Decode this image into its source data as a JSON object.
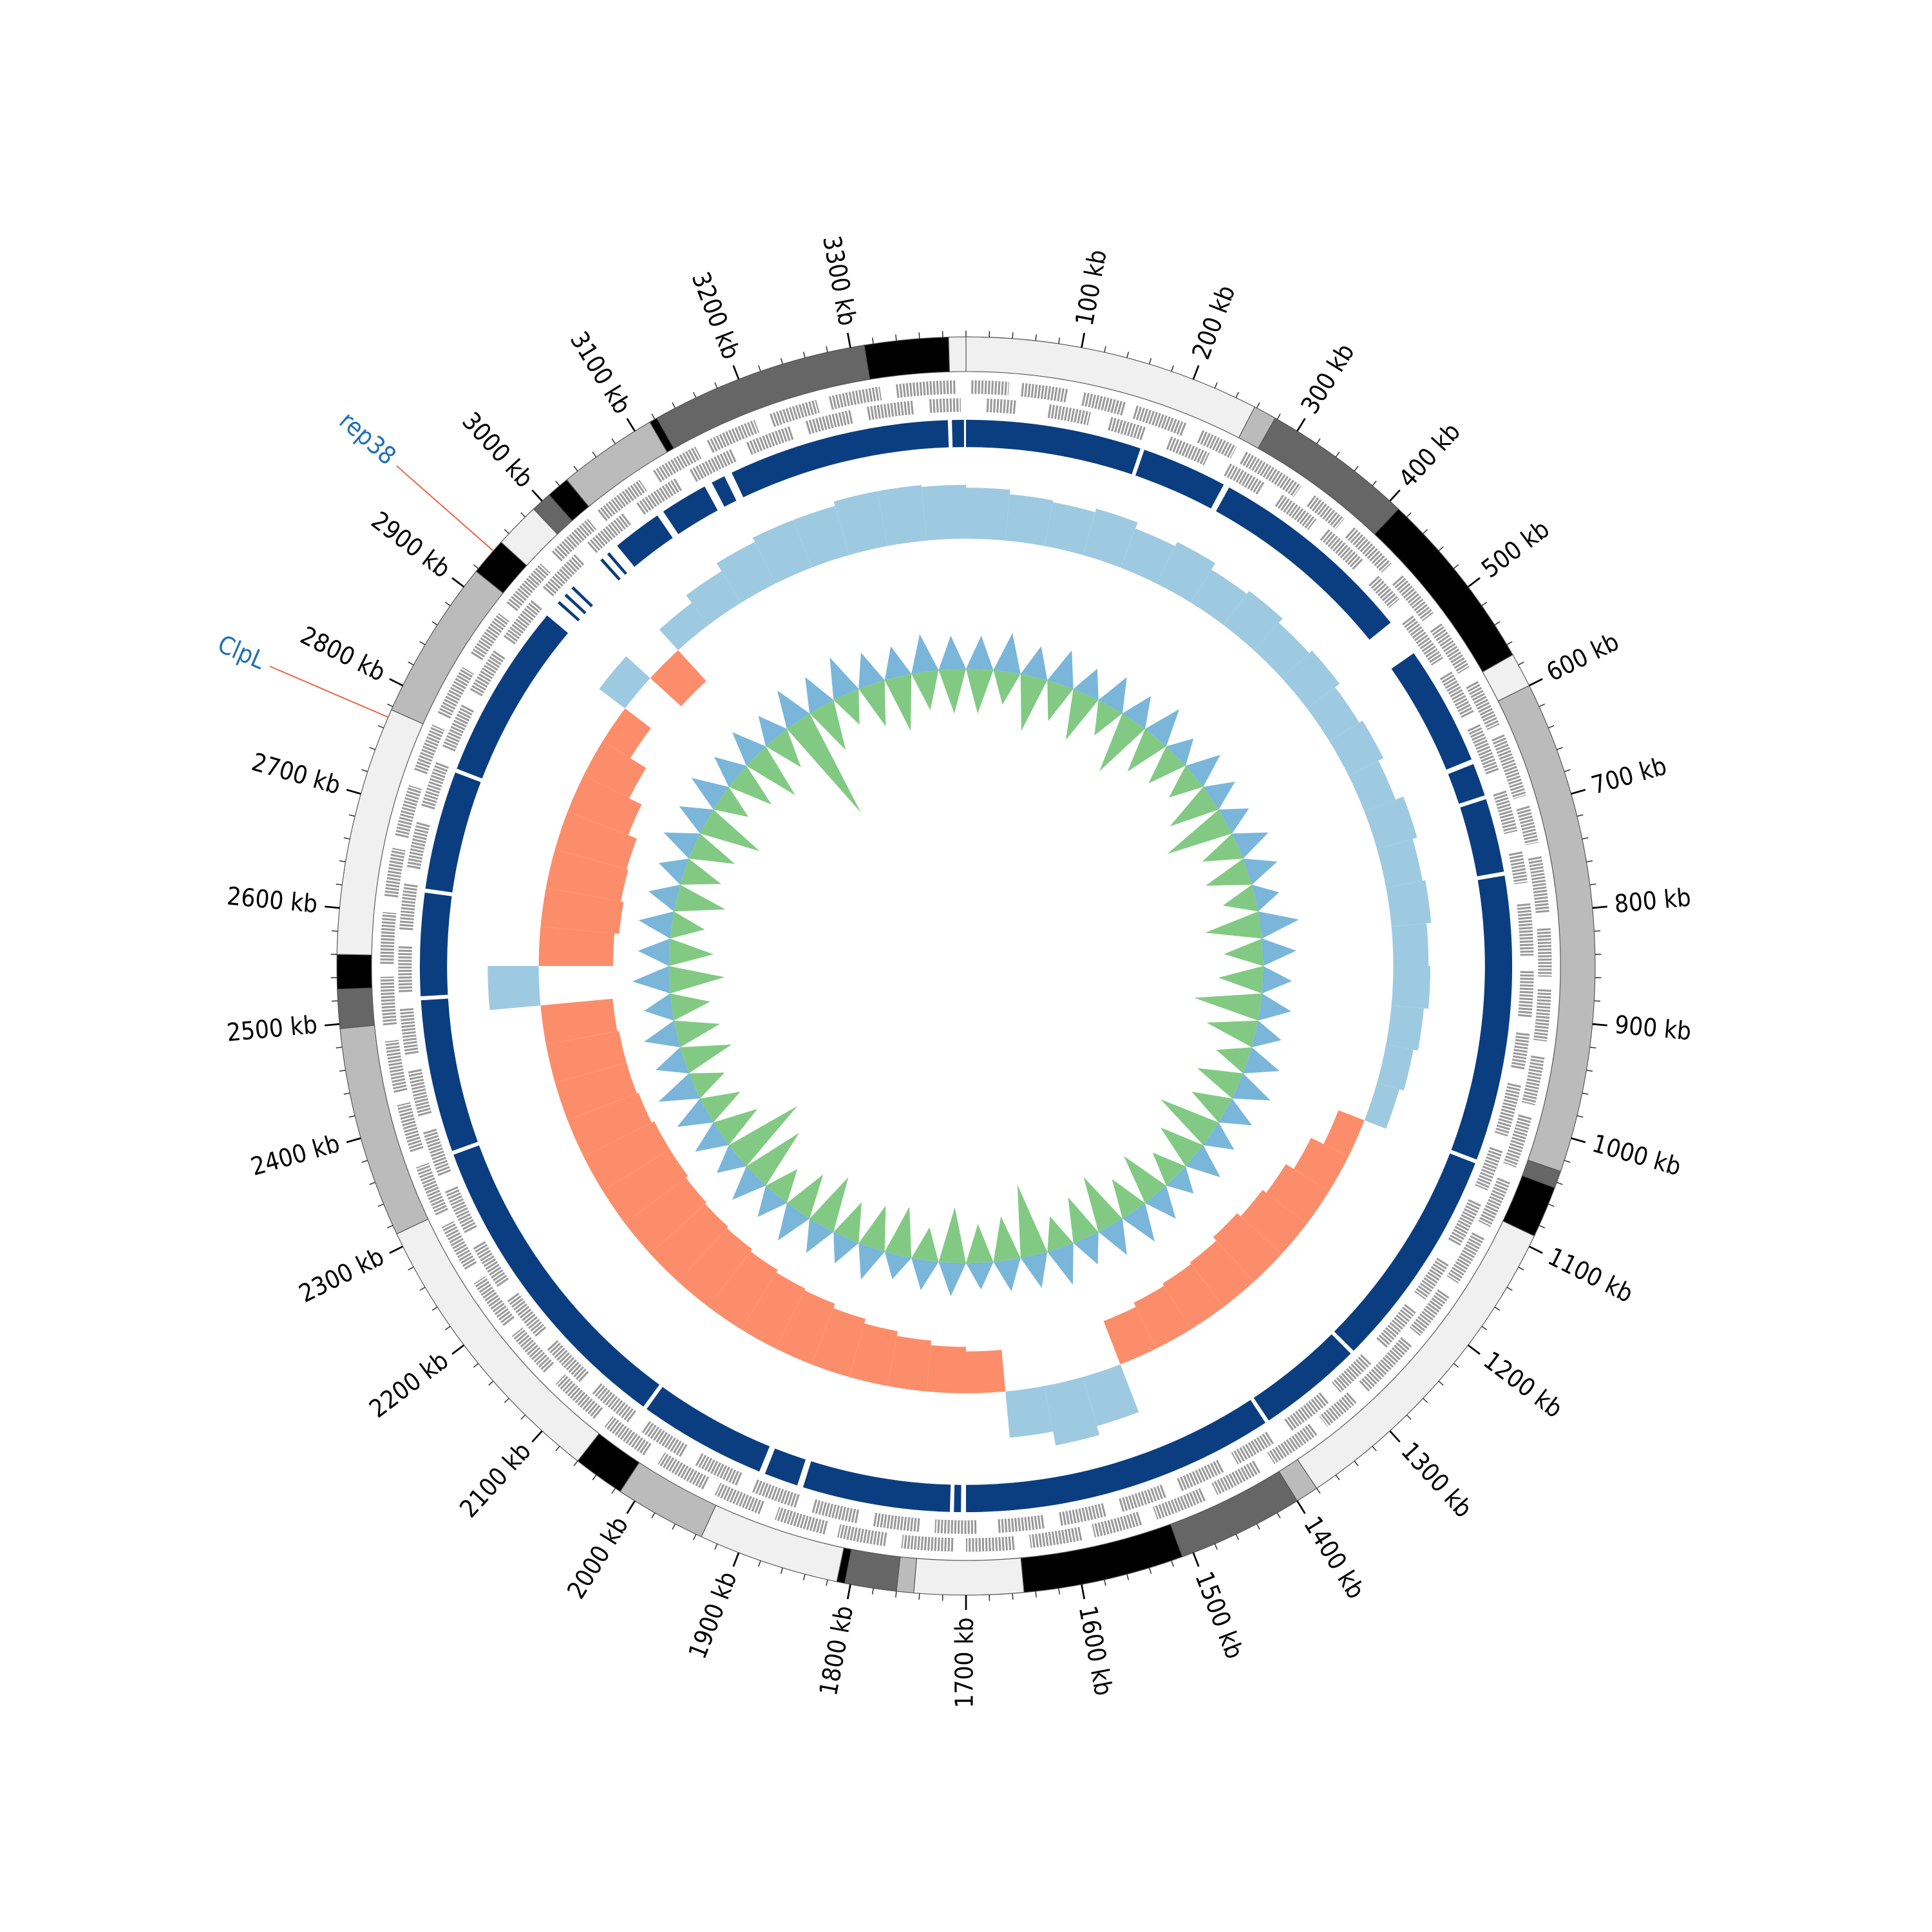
{
  "chart_data": {
    "type": "circos",
    "xlim": [
      0,
      3400
    ],
    "xticks": [
      {
        "value": 100,
        "label": "100 kb"
      },
      {
        "value": 200,
        "label": "200 kb"
      },
      {
        "value": 300,
        "label": "300 kb"
      },
      {
        "value": 400,
        "label": "400 kb"
      },
      {
        "value": 500,
        "label": "500 kb"
      },
      {
        "value": 600,
        "label": "600 kb"
      },
      {
        "value": 700,
        "label": "700 kb"
      },
      {
        "value": 800,
        "label": "800 kb"
      },
      {
        "value": 900,
        "label": "900 kb"
      },
      {
        "value": 1000,
        "label": "1000 kb"
      },
      {
        "value": 1100,
        "label": "1100 kb"
      },
      {
        "value": 1200,
        "label": "1200 kb"
      },
      {
        "value": 1300,
        "label": "1300 kb"
      },
      {
        "value": 1400,
        "label": "1400 kb"
      },
      {
        "value": 1500,
        "label": "1500 kb"
      },
      {
        "value": 1600,
        "label": "1600 kb"
      },
      {
        "value": 1700,
        "label": "1700 kb"
      },
      {
        "value": 1800,
        "label": "1800 kb"
      },
      {
        "value": 1900,
        "label": "1900 kb"
      },
      {
        "value": 2000,
        "label": "2000 kb"
      },
      {
        "value": 2100,
        "label": "2100 kb"
      },
      {
        "value": 2200,
        "label": "2200 kb"
      },
      {
        "value": 2300,
        "label": "2300 kb"
      },
      {
        "value": 2400,
        "label": "2400 kb"
      },
      {
        "value": 2500,
        "label": "2500 kb"
      },
      {
        "value": 2600,
        "label": "2600 kb"
      },
      {
        "value": 2700,
        "label": "2700 kb"
      },
      {
        "value": 2800,
        "label": "2800 kb"
      },
      {
        "value": 2900,
        "label": "2900 kb"
      },
      {
        "value": 3000,
        "label": "3000 kb"
      },
      {
        "value": 3100,
        "label": "3100 kb"
      },
      {
        "value": 3200,
        "label": "3200 kb"
      },
      {
        "value": 3300,
        "label": "3300 kb"
      }
    ],
    "minor_tick_step": 20,
    "bands": [
      {
        "start": 0,
        "end": 258,
        "color": "#f0f0f0"
      },
      {
        "start": 258,
        "end": 278,
        "color": "#bbbbbb"
      },
      {
        "start": 278,
        "end": 410,
        "color": "#666666"
      },
      {
        "start": 410,
        "end": 570,
        "color": "#000000"
      },
      {
        "start": 570,
        "end": 600,
        "color": "#f0f0f0"
      },
      {
        "start": 600,
        "end": 1030,
        "color": "#bbbbbb"
      },
      {
        "start": 1030,
        "end": 1045,
        "color": "#666666"
      },
      {
        "start": 1045,
        "end": 1090,
        "color": "#000000"
      },
      {
        "start": 1090,
        "end": 1380,
        "color": "#f0f0f0"
      },
      {
        "start": 1380,
        "end": 1400,
        "color": "#bbbbbb"
      },
      {
        "start": 1400,
        "end": 1510,
        "color": "#666666"
      },
      {
        "start": 1510,
        "end": 1650,
        "color": "#000000"
      },
      {
        "start": 1650,
        "end": 1745,
        "color": "#f0f0f0"
      },
      {
        "start": 1745,
        "end": 1760,
        "color": "#bbbbbb"
      },
      {
        "start": 1760,
        "end": 1805,
        "color": "#666666"
      },
      {
        "start": 1805,
        "end": 1812,
        "color": "#000000"
      },
      {
        "start": 1812,
        "end": 1935,
        "color": "#f0f0f0"
      },
      {
        "start": 1935,
        "end": 2015,
        "color": "#bbbbbb"
      },
      {
        "start": 2015,
        "end": 2060,
        "color": "#000000"
      },
      {
        "start": 2060,
        "end": 2312,
        "color": "#f0f0f0"
      },
      {
        "start": 2312,
        "end": 2496,
        "color": "#bbbbbb"
      },
      {
        "start": 2496,
        "end": 2530,
        "color": "#666666"
      },
      {
        "start": 2530,
        "end": 2560,
        "color": "#000000"
      },
      {
        "start": 2560,
        "end": 2777,
        "color": "#f0f0f0"
      },
      {
        "start": 2777,
        "end": 2917,
        "color": "#bbbbbb"
      },
      {
        "start": 2917,
        "end": 2950,
        "color": "#000000"
      },
      {
        "start": 2950,
        "end": 2990,
        "color": "#f0f0f0"
      },
      {
        "start": 2990,
        "end": 3008,
        "color": "#666666"
      },
      {
        "start": 3008,
        "end": 3028,
        "color": "#000000"
      },
      {
        "start": 3028,
        "end": 3115,
        "color": "#bbbbbb"
      },
      {
        "start": 3115,
        "end": 3122,
        "color": "#000000"
      },
      {
        "start": 3122,
        "end": 3312,
        "color": "#666666"
      },
      {
        "start": 3312,
        "end": 3385,
        "color": "#000000"
      },
      {
        "start": 3385,
        "end": 3400,
        "color": "#f0f0f0"
      }
    ],
    "gene_color": "#999999",
    "genes_forward": [
      [
        5,
        40
      ],
      [
        52,
        95
      ],
      [
        110,
        150
      ],
      [
        160,
        210
      ],
      [
        225,
        260
      ],
      [
        270,
        330
      ],
      [
        345,
        380
      ],
      [
        392,
        440
      ],
      [
        455,
        500
      ],
      [
        512,
        560
      ],
      [
        575,
        620
      ],
      [
        630,
        690
      ],
      [
        700,
        735
      ],
      [
        748,
        800
      ],
      [
        815,
        860
      ],
      [
        872,
        920
      ],
      [
        935,
        980
      ],
      [
        992,
        1040
      ],
      [
        1055,
        1100
      ],
      [
        1112,
        1160
      ],
      [
        1175,
        1220
      ],
      [
        1232,
        1290
      ],
      [
        1305,
        1340
      ],
      [
        1352,
        1400
      ],
      [
        1415,
        1460
      ],
      [
        1472,
        1520
      ],
      [
        1535,
        1580
      ],
      [
        1592,
        1640
      ],
      [
        1655,
        1700
      ],
      [
        1712,
        1760
      ],
      [
        1775,
        1820
      ],
      [
        1832,
        1880
      ],
      [
        1895,
        1940
      ],
      [
        1952,
        2000
      ],
      [
        2015,
        2060
      ],
      [
        2072,
        2120
      ],
      [
        2135,
        2180
      ],
      [
        2192,
        2240
      ],
      [
        2255,
        2300
      ],
      [
        2312,
        2360
      ],
      [
        2375,
        2420
      ],
      [
        2432,
        2480
      ],
      [
        2495,
        2540
      ],
      [
        2552,
        2600
      ],
      [
        2615,
        2660
      ],
      [
        2672,
        2720
      ],
      [
        2735,
        2780
      ],
      [
        2792,
        2840
      ],
      [
        2855,
        2900
      ],
      [
        2912,
        2960
      ],
      [
        2975,
        3020
      ],
      [
        3032,
        3080
      ],
      [
        3095,
        3140
      ],
      [
        3152,
        3200
      ],
      [
        3215,
        3260
      ],
      [
        3272,
        3320
      ],
      [
        3335,
        3390
      ]
    ],
    "genes_reverse": [
      [
        20,
        48
      ],
      [
        80,
        120
      ],
      [
        140,
        175
      ],
      [
        200,
        240
      ],
      [
        262,
        300
      ],
      [
        320,
        360
      ],
      [
        375,
        420
      ],
      [
        440,
        470
      ],
      [
        490,
        540
      ],
      [
        555,
        600
      ],
      [
        612,
        660
      ],
      [
        680,
        720
      ],
      [
        740,
        770
      ],
      [
        790,
        840
      ],
      [
        855,
        900
      ],
      [
        915,
        950
      ],
      [
        965,
        1015
      ],
      [
        1030,
        1070
      ],
      [
        1085,
        1130
      ],
      [
        1150,
        1190
      ],
      [
        1205,
        1250
      ],
      [
        1270,
        1310
      ],
      [
        1325,
        1370
      ],
      [
        1390,
        1430
      ],
      [
        1445,
        1490
      ],
      [
        1505,
        1550
      ],
      [
        1565,
        1610
      ],
      [
        1625,
        1670
      ],
      [
        1690,
        1730
      ],
      [
        1745,
        1790
      ],
      [
        1805,
        1850
      ],
      [
        1865,
        1910
      ],
      [
        1925,
        1970
      ],
      [
        1985,
        2030
      ],
      [
        2045,
        2090
      ],
      [
        2105,
        2150
      ],
      [
        2165,
        2210
      ],
      [
        2225,
        2270
      ],
      [
        2285,
        2330
      ],
      [
        2345,
        2390
      ],
      [
        2405,
        2450
      ],
      [
        2465,
        2510
      ],
      [
        2525,
        2570
      ],
      [
        2585,
        2630
      ],
      [
        2645,
        2690
      ],
      [
        2705,
        2750
      ],
      [
        2765,
        2810
      ],
      [
        2825,
        2870
      ],
      [
        2885,
        2930
      ],
      [
        2945,
        2990
      ],
      [
        3005,
        3050
      ],
      [
        3065,
        3110
      ],
      [
        3125,
        3170
      ],
      [
        3185,
        3230
      ],
      [
        3245,
        3290
      ],
      [
        3305,
        3350
      ],
      [
        3365,
        3395
      ]
    ],
    "segments_color": "#0b3e80",
    "segments": [
      [
        0,
        176
      ],
      [
        180,
        266
      ],
      [
        272,
        482
      ],
      [
        520,
        640
      ],
      [
        645,
        678
      ],
      [
        682,
        756
      ],
      [
        760,
        1046
      ],
      [
        1050,
        1273
      ],
      [
        1277,
        1382
      ],
      [
        1386,
        1700
      ],
      [
        1705,
        1712
      ],
      [
        1716,
        1864
      ],
      [
        1870,
        1904
      ],
      [
        1910,
        2038
      ],
      [
        2042,
        2359
      ],
      [
        2363,
        2516
      ],
      [
        2520,
        2623
      ],
      [
        2627,
        2746
      ],
      [
        2750,
        2927
      ],
      [
        2943,
        2946
      ],
      [
        2953,
        2956
      ],
      [
        2963,
        2966
      ],
      [
        3003,
        3006
      ],
      [
        3012,
        3015
      ],
      [
        3025,
        3075
      ],
      [
        3082,
        3130
      ],
      [
        3138,
        3152
      ],
      [
        3160,
        3382
      ],
      [
        3386,
        3398
      ]
    ],
    "bins": [
      0,
      50,
      100,
      150,
      200,
      250,
      300,
      350,
      400,
      450,
      500,
      550,
      600,
      650,
      700,
      750,
      800,
      850,
      900,
      950,
      1000,
      1050,
      1100,
      1150,
      1200,
      1250,
      1300,
      1350,
      1400,
      1450,
      1500,
      1550,
      1600,
      1650,
      1700,
      1750,
      1800,
      1850,
      1900,
      1950,
      2000,
      2050,
      2100,
      2150,
      2200,
      2250,
      2300,
      2350,
      2400,
      2450,
      2500,
      2550,
      2600,
      2650,
      2700,
      2750,
      2800,
      2850,
      2900,
      2950,
      3000,
      3050,
      3100,
      3150,
      3200,
      3250,
      3300,
      3350,
      3400
    ],
    "gc_skew": {
      "ylim": [
        -1,
        1
      ],
      "positive_color": "#9ecae1",
      "negative_color": "#fc8d6a",
      "values": [
        0.55,
        0.5,
        0.48,
        0.52,
        0.45,
        0.5,
        0.42,
        0.46,
        0.4,
        0.44,
        0.38,
        0.42,
        0.36,
        0.45,
        0.4,
        0.43,
        0.38,
        0.4,
        0.35,
        0.3,
        0.25,
        -0.3,
        -0.45,
        -0.55,
        -0.6,
        -0.65,
        -0.6,
        -0.58,
        -0.55,
        -0.5,
        0.55,
        0.65,
        0.5,
        -0.45,
        -0.5,
        -0.55,
        -0.6,
        -0.65,
        -0.7,
        -0.72,
        -0.75,
        -0.78,
        -0.8,
        -0.82,
        -0.85,
        -0.85,
        -0.82,
        -0.8,
        -0.8,
        -0.78,
        0.55,
        -0.8,
        -0.85,
        -0.82,
        -0.8,
        -0.7,
        -0.55,
        -0.35,
        0.35,
        -0.45,
        0.3,
        0.4,
        0.5,
        0.55,
        0.55,
        0.6,
        0.6,
        0.58
      ]
    },
    "gc_content": {
      "ylim": [
        -1,
        1
      ],
      "series": [
        {
          "color": "#6baed6",
          "values": [
            0.3,
            0.35,
            0.28,
            0.32,
            0.25,
            0.3,
            0.27,
            0.33,
            0.22,
            0.3,
            0.26,
            0.24,
            0.3,
            0.28,
            0.22,
            0.35,
            0.3,
            0.26,
            0.28,
            0.24,
            0.3,
            0.32,
            0.27,
            0.25,
            0.3,
            0.22,
            0.28,
            0.33,
            0.3,
            0.26,
            0.35,
            0.3,
            0.28,
            0.24,
            0.3,
            0.27,
            0.22,
            0.3,
            0.25,
            0.28,
            0.32,
            0.26,
            0.3,
            0.24,
            0.28,
            0.3,
            0.35,
            0.27,
            0.3,
            0.25,
            0.33,
            0.28,
            0.3,
            0.26,
            0.24,
            0.3,
            0.28,
            0.32,
            0.27,
            0.3,
            0.25,
            0.33,
            0.3,
            0.36,
            0.3,
            0.28,
            0.34,
            0.3
          ]
        },
        {
          "color": "#74c476",
          "values": [
            -0.4,
            -0.3,
            -0.5,
            -0.35,
            -0.45,
            -0.3,
            -0.55,
            -0.4,
            -0.35,
            -0.3,
            -0.45,
            -0.6,
            -0.35,
            -0.4,
            -0.3,
            -0.5,
            -0.35,
            -0.4,
            -0.6,
            -0.45,
            -0.3,
            -0.4,
            -0.35,
            -0.55,
            -0.4,
            -0.3,
            -0.45,
            -0.35,
            -0.5,
            -0.4,
            -0.3,
            -0.65,
            -0.4,
            -0.35,
            -0.5,
            -0.3,
            -0.45,
            -0.4,
            -0.35,
            -0.5,
            -0.4,
            -0.3,
            -0.55,
            -0.7,
            -0.4,
            -0.35,
            -0.3,
            -0.45,
            -0.4,
            -0.35,
            -0.5,
            -0.4,
            -0.3,
            -0.45,
            -0.35,
            -0.4,
            -0.55,
            -0.3,
            -0.4,
            -0.5,
            -0.35,
            -1.0,
            -0.45,
            -0.3,
            -0.4,
            -0.5,
            -0.35,
            -0.4
          ]
        }
      ]
    },
    "annotation_color": "#2070b4",
    "annotation_line_color": "#f06040",
    "annotations": [
      {
        "label": "rep38",
        "position": 2940
      },
      {
        "label": "ClpL",
        "position": 2770
      }
    ]
  }
}
